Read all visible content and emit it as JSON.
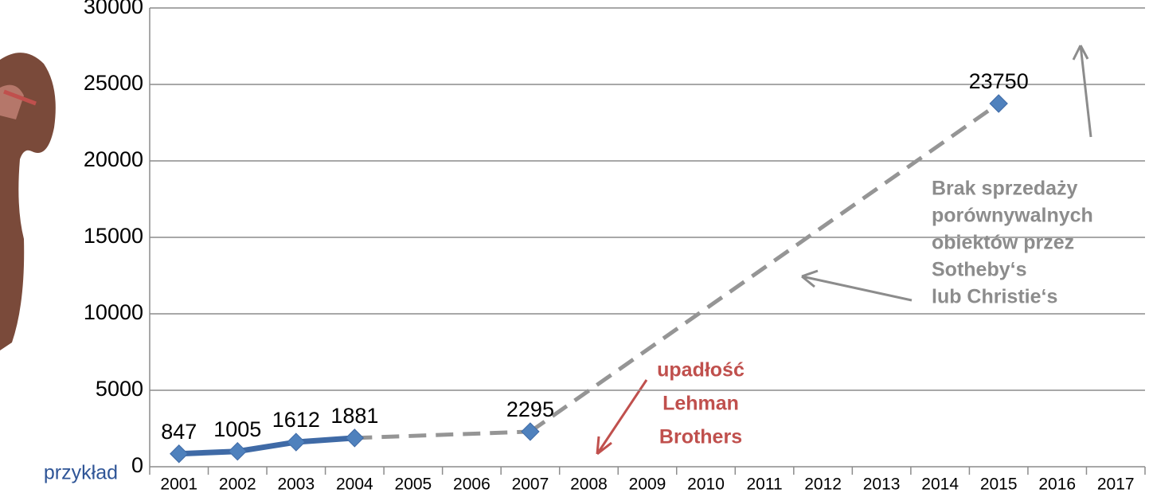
{
  "chart_data": {
    "type": "line",
    "categories": [
      "2001",
      "2002",
      "2003",
      "2004",
      "2005",
      "2006",
      "2007",
      "2008",
      "2009",
      "2010",
      "2011",
      "2012",
      "2013",
      "2014",
      "2015",
      "2016",
      "2017"
    ],
    "series": [
      {
        "color": "#4f81bd",
        "values": [
          847,
          1005,
          1612,
          1881,
          null,
          null,
          2295,
          null,
          null,
          null,
          null,
          null,
          null,
          null,
          23750,
          null,
          null
        ]
      }
    ],
    "ylim": [
      0,
      30000
    ],
    "yticks": [
      0,
      5000,
      10000,
      15000,
      20000,
      25000,
      30000
    ],
    "grid": true,
    "annotations": [
      {
        "lines": [
          "upadłość",
          "Lehman",
          "Brothers"
        ],
        "color": "#c0504d"
      },
      {
        "lines": [
          "Brak sprzedaży",
          "porównywalnych",
          "obiektów przez",
          "Sotheby‘s",
          "lub Christie‘s"
        ],
        "color": "#8c8c8c"
      }
    ],
    "side_label": "przykład"
  }
}
